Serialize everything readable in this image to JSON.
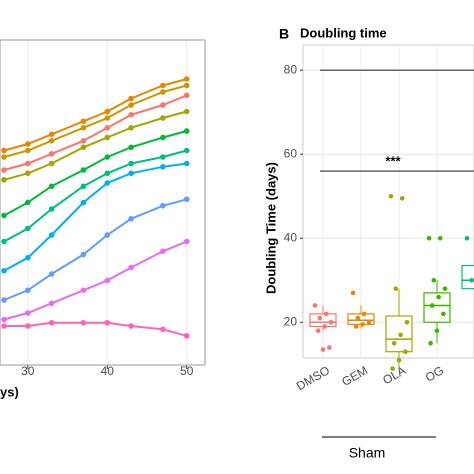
{
  "chart_data": [
    {
      "type": "line",
      "x_label": "ys)",
      "x": [
        27,
        30,
        33,
        37,
        40,
        43,
        47,
        50
      ],
      "xlim": [
        26.5,
        52.3
      ],
      "xticks": [
        30,
        40,
        50
      ],
      "ylim": [
        0,
        100
      ],
      "grid": true,
      "series": [
        {
          "color": "#e58700",
          "values": [
            66,
            68,
            71,
            75,
            78,
            82,
            86,
            88
          ]
        },
        {
          "color": "#c99800",
          "values": [
            64,
            66,
            69,
            73,
            76,
            80,
            84,
            86
          ]
        },
        {
          "color": "#f8766d",
          "values": [
            60,
            62,
            65,
            69,
            73,
            77,
            80,
            83
          ]
        },
        {
          "color": "#a3a500",
          "values": [
            57,
            59,
            62,
            67,
            70,
            73,
            76,
            78
          ]
        },
        {
          "color": "#00ba38",
          "values": [
            46,
            50,
            55,
            60,
            64,
            67,
            70,
            72
          ]
        },
        {
          "color": "#00bf7d",
          "values": [
            38,
            42,
            48,
            55,
            59,
            62,
            64,
            66
          ]
        },
        {
          "color": "#00b0f6",
          "values": [
            29,
            33,
            40,
            50,
            56,
            59,
            61,
            62
          ]
        },
        {
          "color": "#619cff",
          "values": [
            20,
            23,
            28,
            34,
            40,
            45,
            49,
            51
          ]
        },
        {
          "color": "#e76bf3",
          "values": [
            14,
            16,
            19,
            23,
            26,
            30,
            35,
            38
          ]
        },
        {
          "color": "#ff62bc",
          "values": [
            12,
            12,
            13,
            13,
            13,
            12,
            11,
            9
          ]
        }
      ]
    },
    {
      "type": "box",
      "panel": "B",
      "title": "Doubling time",
      "y_label": "Doubling Time (days)",
      "group_label": "Sham",
      "categories": [
        "DMSO",
        "GEM",
        "OLA",
        "OG",
        null
      ],
      "colors": [
        "#f8766d",
        "#e58700",
        "#a3a500",
        "#39b600",
        "#00bf7d"
      ],
      "min": [
        18,
        18.5,
        9,
        15,
        26
      ],
      "q1": [
        19,
        19.5,
        13,
        20,
        28
      ],
      "median": [
        20,
        20.5,
        16,
        24,
        30
      ],
      "q3": [
        22,
        22,
        21.5,
        27,
        33.5
      ],
      "max": [
        24,
        24,
        28,
        30,
        38
      ],
      "points": [
        [
          24,
          22,
          21,
          20,
          19,
          18,
          14,
          13.5
        ],
        [
          27,
          22,
          21,
          20,
          19.5,
          19
        ],
        [
          50,
          49.5,
          28,
          20,
          17,
          15,
          13,
          11,
          9
        ],
        [
          40,
          40,
          30,
          28,
          26,
          24,
          22,
          18,
          15
        ],
        [
          40,
          33,
          30,
          29,
          28
        ]
      ],
      "brackets": [
        {
          "y": 80
        },
        {
          "y": 56,
          "label": "***"
        }
      ],
      "ylim": [
        11.5,
        86
      ],
      "yticks": [
        20,
        40,
        60,
        80
      ],
      "grid": true
    }
  ]
}
